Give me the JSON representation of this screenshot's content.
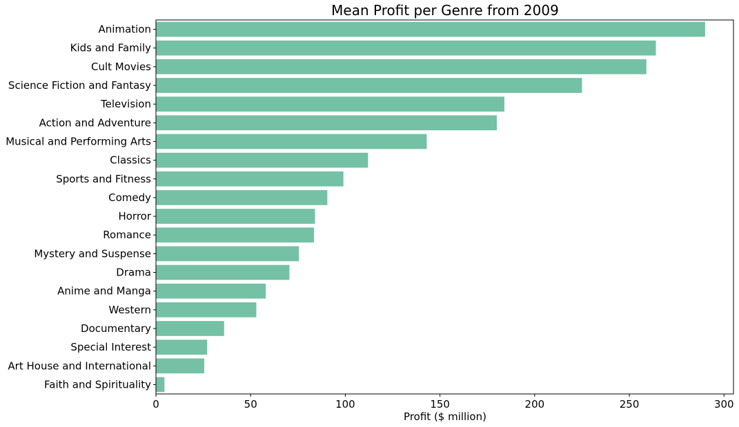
{
  "chart_data": {
    "type": "bar",
    "orientation": "horizontal",
    "title": "Mean Profit per Genre from 2009",
    "xlabel": "Profit ($ million)",
    "ylabel": "",
    "categories": [
      "Animation",
      "Kids and Family",
      "Cult Movies",
      "Science Fiction and Fantasy",
      "Television",
      "Action and Adventure",
      "Musical and Performing Arts",
      "Classics",
      "Sports and Fitness",
      "Comedy",
      "Horror",
      "Romance",
      "Mystery and Suspense",
      "Drama",
      "Anime and Manga",
      "Western",
      "Documentary",
      "Special Interest",
      "Art House and International",
      "Faith and Spirituality"
    ],
    "values": [
      290,
      264,
      259,
      225,
      184,
      180,
      143,
      112,
      99,
      90.5,
      84,
      83.5,
      75.5,
      70.5,
      58,
      53,
      36,
      27,
      25.5,
      4.5
    ],
    "xlim": [
      0,
      305
    ],
    "xticks": [
      0,
      50,
      100,
      150,
      200,
      250,
      300
    ],
    "xtick_labels": [
      "0",
      "50",
      "100",
      "150",
      "200",
      "250",
      "300"
    ],
    "grid": false,
    "legend": "none",
    "bar_color": "#74c1a5",
    "axis_color": "#000000"
  }
}
